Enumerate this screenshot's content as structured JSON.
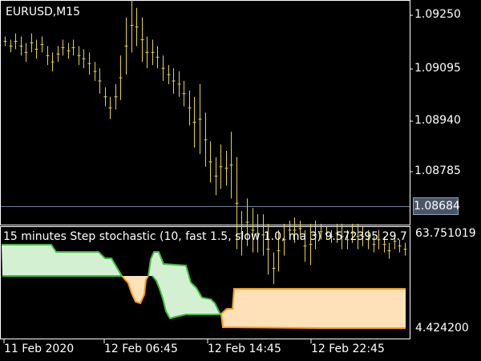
{
  "symbol_label": "EURUSD,M15",
  "indicator_label": "15 minutes Step stochastic (10, fast 1.5, slow 1.0, ma 3) 9.572395 29.7",
  "indicator_scale": {
    "max": "63.751019",
    "min": "4.424200"
  },
  "current_price": "1.08684",
  "price_axis": [
    "1.09250",
    "1.09095",
    "1.08940",
    "1.08785"
  ],
  "time_axis": [
    "11 Feb 2020",
    "12 Feb 06:45",
    "12 Feb 14:45",
    "12 Feb 22:45"
  ],
  "colors": {
    "background": "#000000",
    "frame": "#ffffff",
    "candles": "#e3d34a",
    "current_line": "#6f7d96",
    "stoch_up_fill": "#d4f0d2",
    "stoch_up_line": "#3dbb3a",
    "stoch_down_fill": "#fde1b8",
    "stoch_down_line": "#f59a1a"
  },
  "chart_data": [
    {
      "type": "ohlc",
      "title": "EURUSD,M15",
      "ylim": [
        1.0864,
        1.0934
      ],
      "bar_ranges": [
        [
          1.0923,
          1.092
        ],
        [
          1.0922,
          1.0918
        ],
        [
          1.0924,
          1.0919
        ],
        [
          1.0923,
          1.0917
        ],
        [
          1.0921,
          1.0915
        ],
        [
          1.0924,
          1.0918
        ],
        [
          1.0922,
          1.0916
        ],
        [
          1.0923,
          1.0918
        ],
        [
          1.092,
          1.0914
        ],
        [
          1.0918,
          1.0912
        ],
        [
          1.092,
          1.0915
        ],
        [
          1.0922,
          1.0917
        ],
        [
          1.0921,
          1.0916
        ],
        [
          1.0922,
          1.0917
        ],
        [
          1.092,
          1.0914
        ],
        [
          1.0919,
          1.0913
        ],
        [
          1.0918,
          1.0911
        ],
        [
          1.0915,
          1.0909
        ],
        [
          1.0913,
          1.0905
        ],
        [
          1.0907,
          1.0901
        ],
        [
          1.0904,
          1.0897
        ],
        [
          1.0908,
          1.09
        ],
        [
          1.0917,
          1.0903
        ],
        [
          1.0929,
          1.0911
        ],
        [
          1.0935,
          1.0918
        ],
        [
          1.0932,
          1.092
        ],
        [
          1.0929,
          1.0915
        ],
        [
          1.0923,
          1.0913
        ],
        [
          1.0922,
          1.0914
        ],
        [
          1.092,
          1.0913
        ],
        [
          1.0917,
          1.0909
        ],
        [
          1.0914,
          1.0908
        ],
        [
          1.0913,
          1.0905
        ],
        [
          1.0912,
          1.0904
        ],
        [
          1.0909,
          1.0901
        ],
        [
          1.0906,
          1.0895
        ],
        [
          1.0904,
          1.0888
        ],
        [
          1.0908,
          1.0886
        ],
        [
          1.0899,
          1.0882
        ],
        [
          1.089,
          1.0877
        ],
        [
          1.0885,
          1.0873
        ],
        [
          1.0889,
          1.0875
        ],
        [
          1.0887,
          1.0876
        ],
        [
          1.0893,
          1.0872
        ],
        [
          1.0885,
          1.0856
        ],
        [
          1.0868,
          1.0854
        ],
        [
          1.0872,
          1.0857
        ],
        [
          1.0869,
          1.0855
        ],
        [
          1.0867,
          1.0855
        ],
        [
          1.0867,
          1.0854
        ],
        [
          1.0864,
          1.0848
        ],
        [
          1.0855,
          1.0845
        ],
        [
          1.0862,
          1.0849
        ],
        [
          1.0864,
          1.0854
        ],
        [
          1.0865,
          1.0859
        ],
        [
          1.0866,
          1.0858
        ],
        [
          1.0865,
          1.086
        ],
        [
          1.0862,
          1.0852
        ],
        [
          1.0864,
          1.0851
        ],
        [
          1.0865,
          1.0856
        ],
        [
          1.0864,
          1.0859
        ],
        [
          1.0863,
          1.0859
        ],
        [
          1.0862,
          1.0858
        ],
        [
          1.0864,
          1.0858
        ],
        [
          1.0864,
          1.0856
        ],
        [
          1.0862,
          1.0856
        ],
        [
          1.0864,
          1.0858
        ],
        [
          1.0864,
          1.0856
        ],
        [
          1.0863,
          1.0857
        ],
        [
          1.0862,
          1.0856
        ],
        [
          1.086,
          1.0855
        ],
        [
          1.0862,
          1.0856
        ],
        [
          1.086,
          1.0855
        ],
        [
          1.0858,
          1.0853
        ],
        [
          1.0861,
          1.0856
        ],
        [
          1.0859,
          1.0855
        ],
        [
          1.0858,
          1.0854
        ]
      ]
    },
    {
      "type": "area",
      "title": "15 minutes Step stochastic (10, fast 1.5, slow 1.0, ma 3)",
      "ylim": [
        4.4242,
        63.751019
      ],
      "series": [
        {
          "name": "fast",
          "values": [
            63.75,
            63.75,
            63.75,
            63.75,
            63.75,
            63.75,
            63.75,
            63.75,
            63.75,
            63.75,
            63.75,
            63.75,
            63.75,
            63.75,
            63.75,
            63.75,
            63.75,
            58.34,
            58.34,
            58.34,
            58.34,
            58.34,
            58.34,
            58.34,
            58.34,
            58.34,
            58.34,
            58.34,
            58.34,
            58.34,
            58.34,
            58.34,
            58.34,
            57.26,
            57.26,
            55.09,
            55.09,
            51.84,
            51.84,
            38.86,
            31.29,
            29.13,
            31.29,
            38.86,
            58.34,
            58.34,
            54.01,
            47.52,
            45.35,
            45.35,
            47.52,
            47.52,
            47.52,
            37.78,
            29.13,
            28.04,
            18.31,
            14.06,
            13.02,
            13.02,
            14.06,
            14.06,
            14.06,
            15.1,
            16.13,
            18.21,
            18.21,
            20.28,
            20.28,
            20.28,
            21.32,
            24.44,
            24.44,
            24.44,
            24.44,
            24.44,
            24.44,
            24.44,
            24.44,
            24.44,
            24.44,
            24.44,
            24.44,
            24.44,
            24.44,
            24.44,
            24.44,
            24.44,
            24.44,
            24.44,
            24.44,
            24.44,
            24.44,
            24.44,
            24.44,
            24.44,
            24.44,
            24.44,
            24.44,
            24.44,
            24.44,
            24.44,
            24.44,
            24.44,
            24.44,
            24.44,
            24.44,
            24.44,
            24.44,
            24.44,
            24.44,
            24.44,
            24.44,
            24.44,
            24.44,
            24.44,
            24.44,
            24.44,
            24.44,
            24.44,
            24.44,
            24.44,
            24.44
          ]
        },
        {
          "name": "slow",
          "values": [
            40.0,
            40.0,
            40.0,
            40.0,
            40.0,
            40.0,
            40.0,
            40.0,
            40.0,
            40.0,
            40.0,
            40.0,
            40.0,
            40.0,
            40.0,
            40.0,
            40.0,
            40.0,
            40.0,
            40.0,
            40.0,
            40.0,
            40.0,
            40.0,
            40.0,
            40.0,
            40.0,
            40.0,
            40.0,
            40.0,
            40.0,
            40.0,
            40.0,
            40.0,
            40.0,
            40.0,
            40.0,
            40.0,
            40.0,
            38.86,
            38.86,
            38.86,
            38.86,
            38.86,
            38.86,
            38.86,
            38.86,
            38.86,
            38.86,
            38.86,
            38.86,
            38.86,
            38.86,
            37.78,
            29.13,
            28.04,
            18.31,
            14.06,
            13.02,
            13.02,
            14.06,
            14.06,
            14.06,
            15.1,
            16.13,
            18.21,
            18.21,
            20.28,
            20.28,
            20.28,
            21.32,
            24.44,
            24.44,
            24.44,
            24.44,
            24.44,
            24.44,
            24.44,
            24.44,
            24.44,
            24.44,
            24.44,
            24.44,
            24.44,
            24.44,
            24.44,
            24.44,
            24.44,
            24.44,
            24.44,
            24.44,
            24.44,
            24.44,
            24.44,
            24.44,
            24.44,
            24.44,
            24.44,
            24.44,
            24.44,
            24.44,
            24.44,
            24.44,
            24.44,
            24.44,
            24.44,
            24.44,
            24.44,
            24.44,
            24.44,
            24.44,
            24.44,
            24.44,
            24.44,
            24.44,
            24.44,
            24.44,
            24.44,
            24.44,
            24.44,
            24.44,
            24.44,
            24.44
          ]
        }
      ]
    }
  ]
}
